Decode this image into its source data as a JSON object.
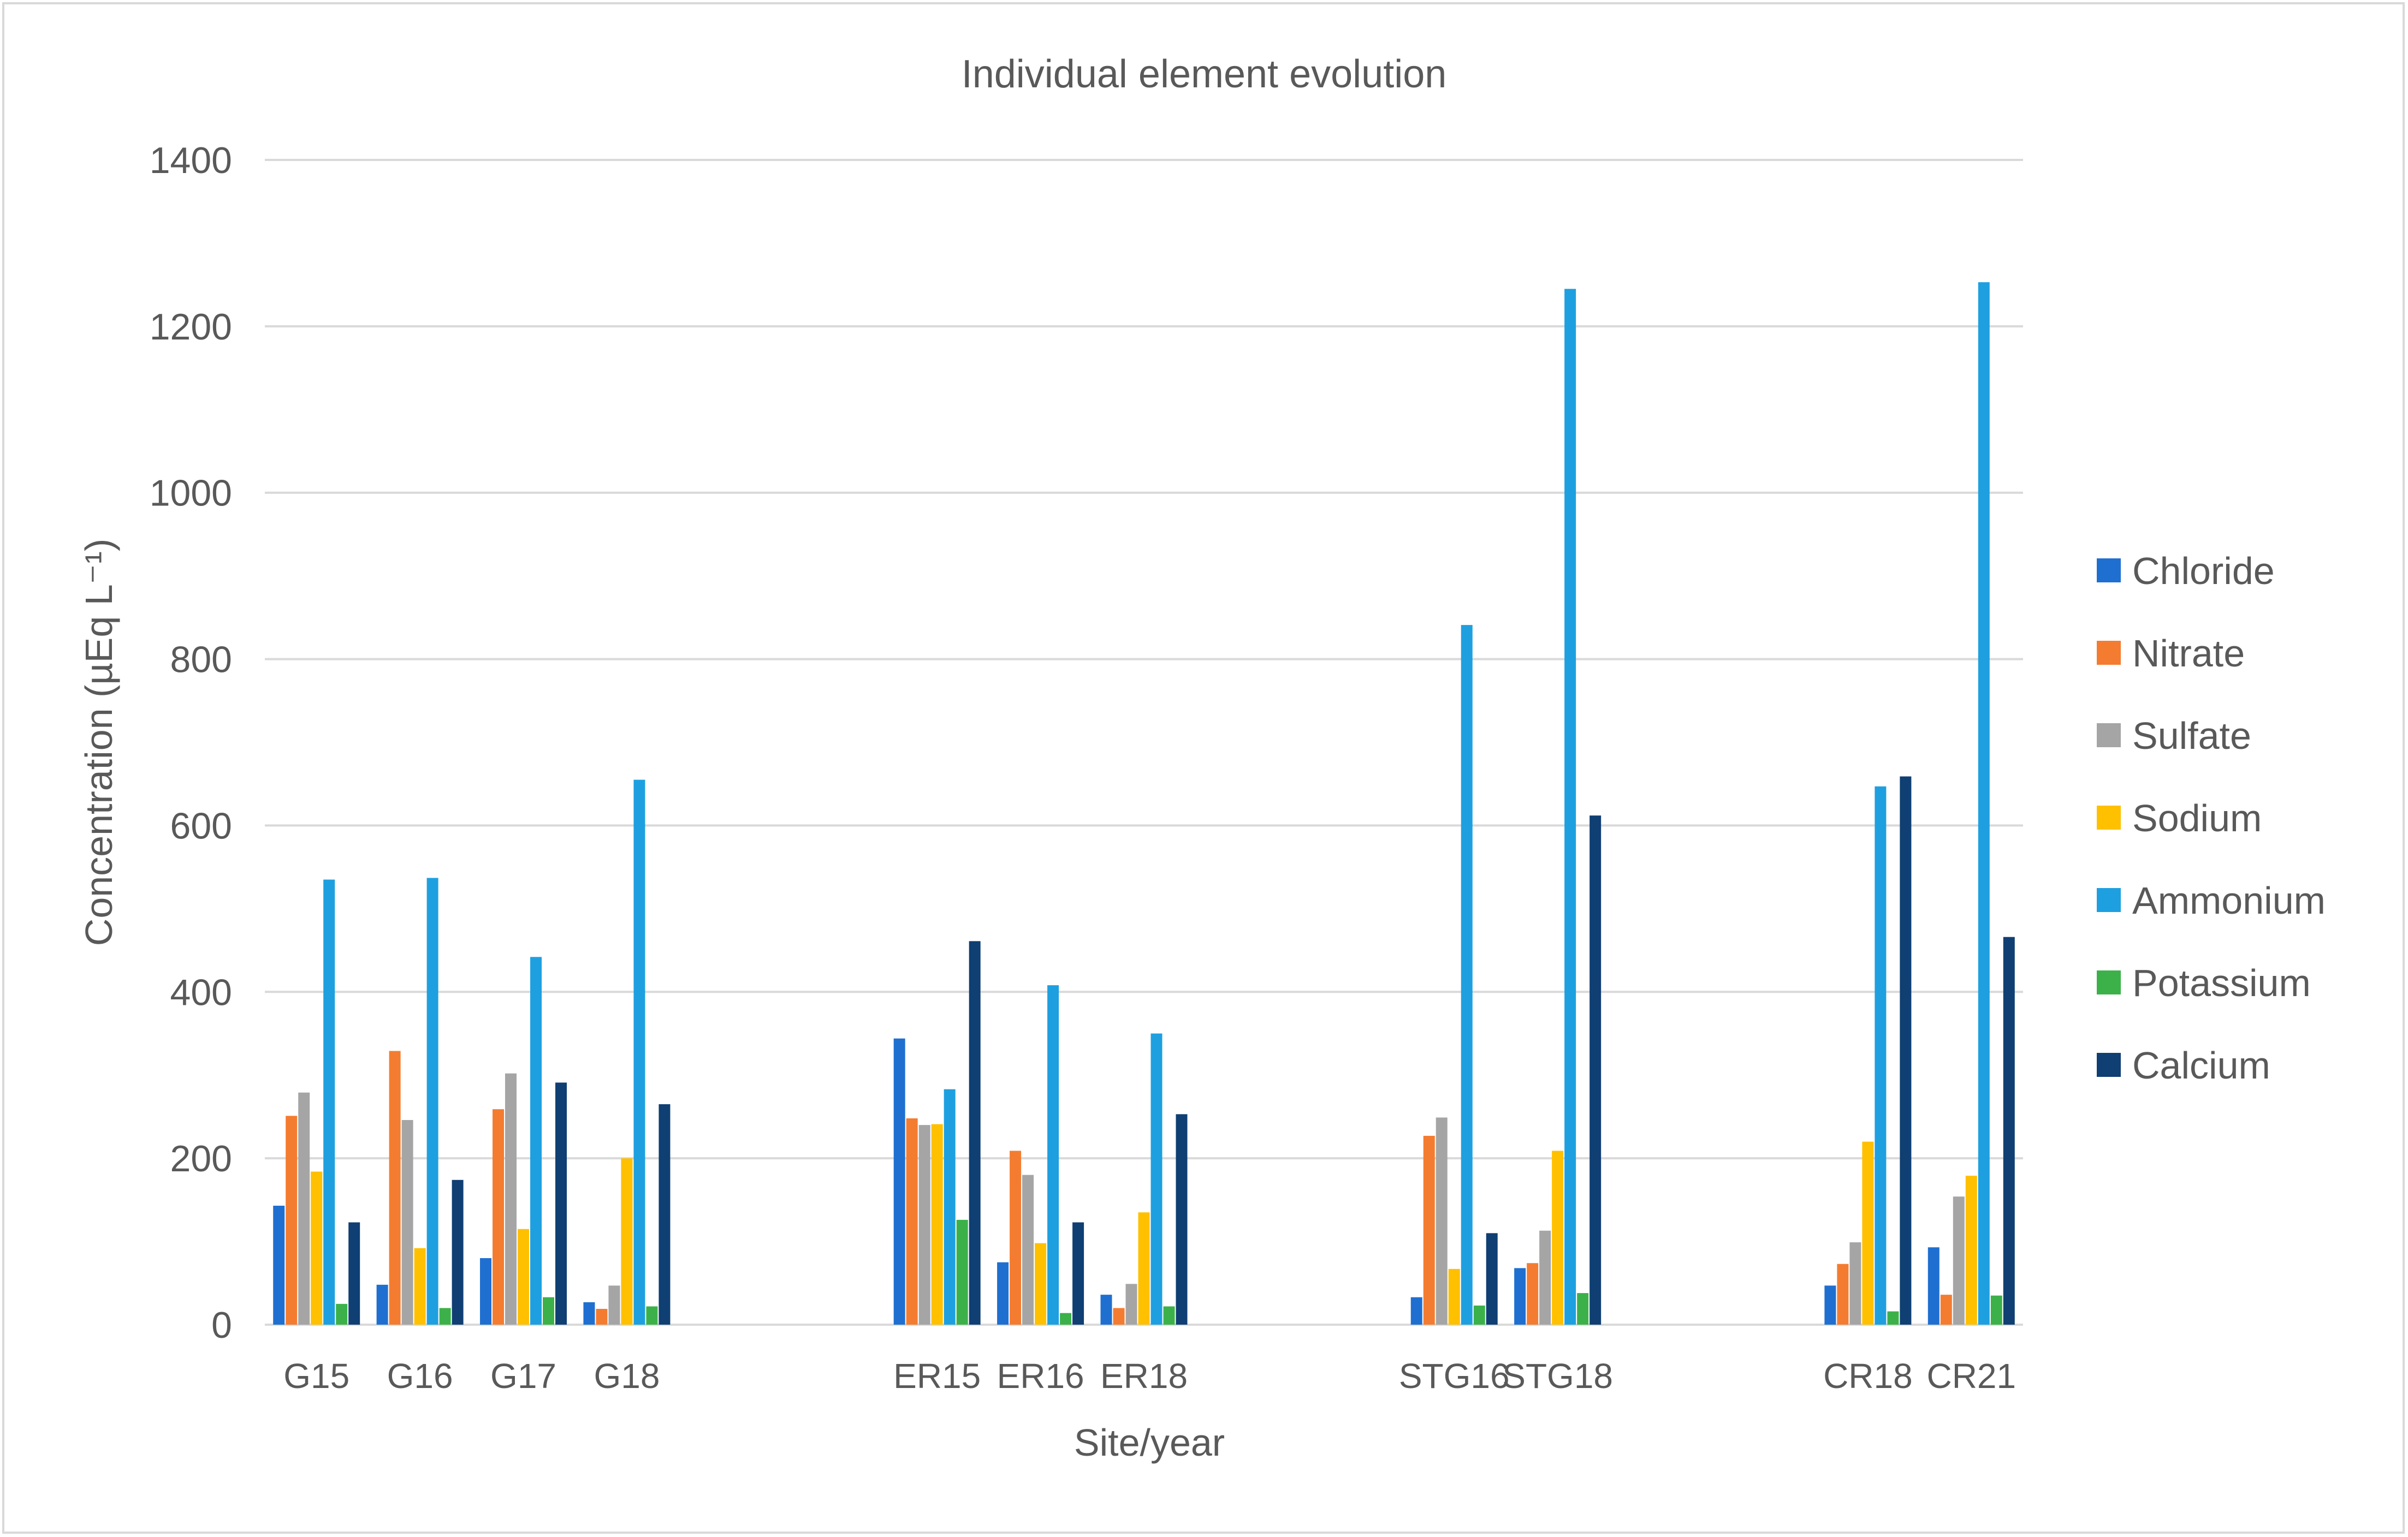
{
  "chart_data": {
    "type": "bar",
    "title": "Individual element evolution",
    "xlabel": "Site/year",
    "ylabel": "Concentration (µEq L⁻¹)",
    "ylim": [
      0,
      1400
    ],
    "yticks": [
      0,
      200,
      400,
      600,
      800,
      1000,
      1200,
      1400
    ],
    "grid": true,
    "legend_position": "right",
    "categories": [
      "G15",
      "G16",
      "G17",
      "G18",
      "",
      "",
      "ER15",
      "ER16",
      "ER18",
      "",
      "",
      "STG16",
      "STG18",
      "",
      "",
      "CR18",
      "CR21"
    ],
    "series": [
      {
        "name": "Chloride",
        "color": "#1f6fd1",
        "values": [
          143,
          48,
          80,
          27,
          null,
          null,
          344,
          75,
          36,
          null,
          null,
          33,
          68,
          null,
          null,
          47,
          93
        ]
      },
      {
        "name": "Nitrate",
        "color": "#f47c30",
        "values": [
          251,
          329,
          259,
          19,
          null,
          null,
          248,
          209,
          20,
          null,
          null,
          227,
          74,
          null,
          null,
          73,
          36
        ]
      },
      {
        "name": "Sulfate",
        "color": "#a5a5a5",
        "values": [
          279,
          246,
          302,
          47,
          null,
          null,
          240,
          180,
          49,
          null,
          null,
          249,
          113,
          null,
          null,
          99,
          154
        ]
      },
      {
        "name": "Sodium",
        "color": "#ffc000",
        "values": [
          184,
          92,
          115,
          200,
          null,
          null,
          241,
          98,
          135,
          null,
          null,
          67,
          209,
          null,
          null,
          220,
          179
        ]
      },
      {
        "name": "Ammonium",
        "color": "#1ea0e0",
        "values": [
          535,
          537,
          442,
          655,
          null,
          null,
          283,
          408,
          350,
          null,
          null,
          841,
          1245,
          null,
          null,
          647,
          1253
        ]
      },
      {
        "name": "Potassium",
        "color": "#3cb14a",
        "values": [
          25,
          20,
          33,
          22,
          null,
          null,
          126,
          14,
          22,
          null,
          null,
          23,
          38,
          null,
          null,
          16,
          35
        ]
      },
      {
        "name": "Calcium",
        "color": "#0f3f73",
        "values": [
          123,
          174,
          291,
          265,
          null,
          null,
          461,
          123,
          253,
          null,
          null,
          110,
          612,
          null,
          null,
          659,
          466
        ]
      }
    ]
  }
}
